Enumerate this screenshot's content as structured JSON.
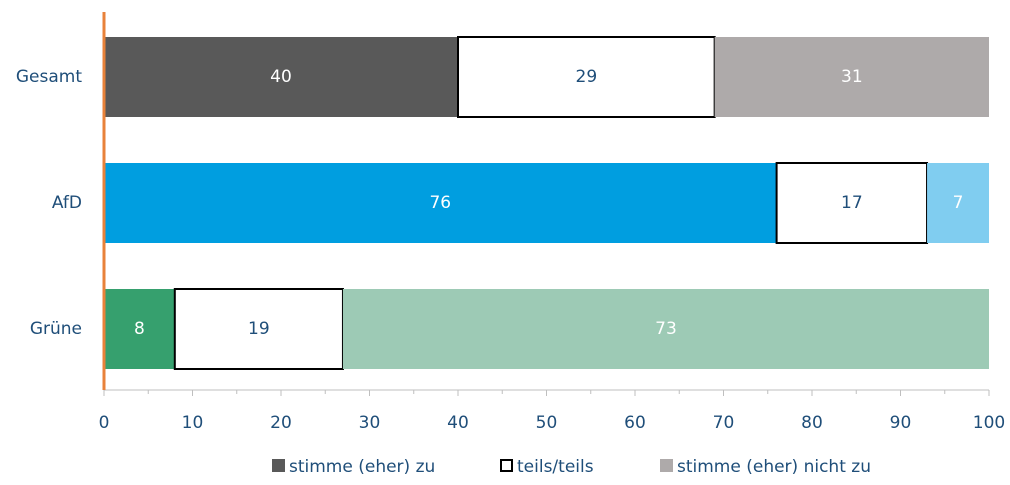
{
  "chart_data": {
    "type": "stacked-barh",
    "categories": [
      "Gesamt",
      "AfD",
      "Grüne"
    ],
    "series": [
      {
        "name": "stimme (eher) zu",
        "color": "#595959",
        "colors": [
          "#595959",
          "#009ee0",
          "#36a06e"
        ],
        "label_color": "#ffffff",
        "values": [
          40,
          76,
          8
        ]
      },
      {
        "name": "teils/teils",
        "color": "#ffffff",
        "stroke": "#000000",
        "colors": [
          "#ffffff",
          "#ffffff",
          "#ffffff"
        ],
        "label_color": "#1f4e79",
        "values": [
          29,
          17,
          19
        ]
      },
      {
        "name": "stimme (eher) nicht zu",
        "color": "#aeaaaa",
        "colors": [
          "#aeaaaa",
          "#80cdf0",
          "#9dcab5"
        ],
        "label_color": "#ffffff",
        "values": [
          31,
          7,
          73
        ]
      }
    ],
    "xlim": [
      0,
      100
    ],
    "xticks": [
      0,
      10,
      20,
      30,
      40,
      50,
      60,
      70,
      80,
      90,
      100
    ],
    "xminorticks": [
      5,
      15,
      25,
      35,
      45,
      55,
      65,
      75,
      85,
      95
    ],
    "axis_color": "#e8823a",
    "grid": false
  }
}
